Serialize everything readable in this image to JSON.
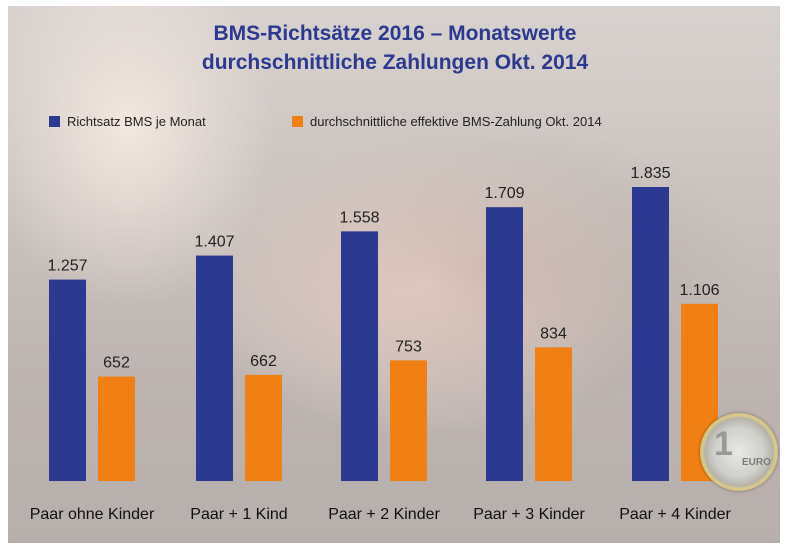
{
  "title_line1": "BMS-Richtsätze 2016 – Monatswerte",
  "title_line2": "durchschnittliche Zahlungen Okt. 2014",
  "coin": {
    "digit": "1",
    "text": "EURO"
  },
  "colors": {
    "blue": "#2b3990",
    "orange": "#f07f14"
  },
  "chart_data": {
    "type": "bar",
    "categories": [
      "Paar ohne Kinder",
      "Paar + 1 Kind",
      "Paar + 2 Kinder",
      "Paar + 3 Kinder",
      "Paar + 4 Kinder"
    ],
    "series": [
      {
        "name": "Richtsatz BMS je Monat",
        "values": [
          1257,
          1407,
          1558,
          1709,
          1835
        ],
        "labels": [
          "1.257",
          "1.407",
          "1.558",
          "1.709",
          "1.835"
        ],
        "color": "#2b3990"
      },
      {
        "name": "durchschnittliche effektive BMS-Zahlung Okt. 2014",
        "values": [
          652,
          662,
          753,
          834,
          1106
        ],
        "labels": [
          "652",
          "662",
          "753",
          "834",
          "1.106"
        ],
        "color": "#f07f14"
      }
    ],
    "ylim": [
      0,
      1835
    ],
    "grid": false,
    "legend": "top-left"
  }
}
